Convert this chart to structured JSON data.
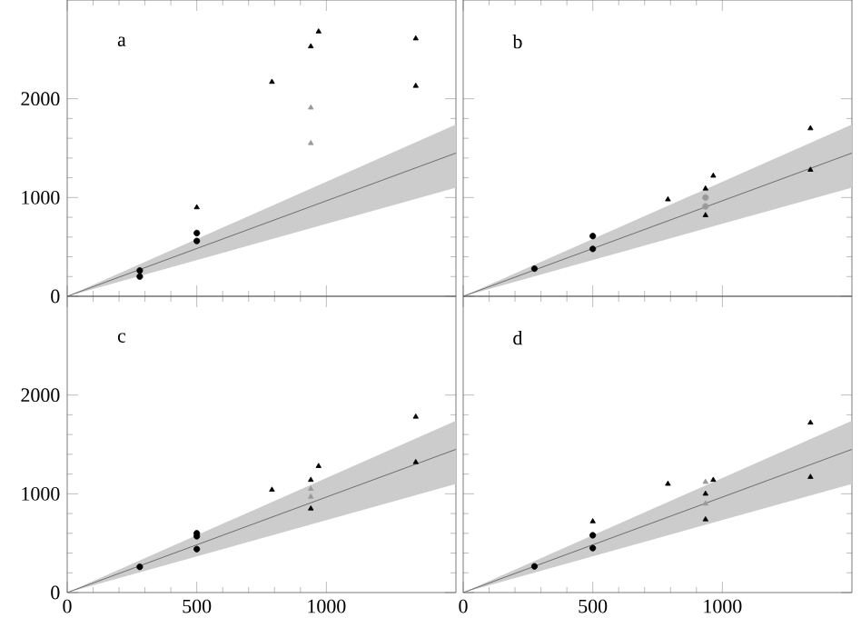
{
  "chart_data": [
    {
      "type": "scatter",
      "annotations": [
        "a"
      ],
      "xlim": [
        0,
        1500
      ],
      "ylim": [
        0,
        3000
      ],
      "xticks": [
        0,
        500,
        1000
      ],
      "yticks": [
        0,
        1000,
        2000
      ],
      "tick_labels": "y",
      "series": [
        {
          "marker": "circle",
          "color": "#000000",
          "x": [
            280,
            280,
            500,
            500
          ],
          "values": [
            260,
            200,
            640,
            560
          ]
        },
        {
          "marker": "triangle",
          "color": "#000000",
          "x": [
            500,
            790,
            940,
            970,
            1345,
            1345
          ],
          "values": [
            900,
            2170,
            2530,
            2680,
            2610,
            2130
          ]
        },
        {
          "marker": "triangle",
          "color": "#999999",
          "x": [
            940,
            940
          ],
          "values": [
            1910,
            1550
          ]
        },
        {
          "type": "line",
          "color": "#555555",
          "x": [
            0,
            1500
          ],
          "values": [
            0,
            1450
          ],
          "lower": [
            0,
            1100
          ],
          "upper": [
            0,
            1740
          ]
        }
      ]
    },
    {
      "type": "scatter",
      "annotations": [
        "b"
      ],
      "xlim": [
        0,
        1500
      ],
      "ylim": [
        0,
        3000
      ],
      "xticks": [
        0,
        500,
        1000
      ],
      "yticks": [
        0,
        1000,
        2000
      ],
      "tick_labels": false,
      "series": [
        {
          "marker": "circle",
          "color": "#000000",
          "x": [
            275,
            500,
            500
          ],
          "values": [
            280,
            610,
            480
          ]
        },
        {
          "marker": "triangle",
          "color": "#000000",
          "x": [
            790,
            935,
            965,
            1340,
            1340,
            935
          ],
          "values": [
            980,
            1090,
            1220,
            1700,
            1280,
            820
          ]
        },
        {
          "marker": "circle",
          "color": "#999999",
          "x": [
            935,
            935
          ],
          "values": [
            1000,
            910
          ]
        },
        {
          "type": "line",
          "color": "#555555",
          "x": [
            0,
            1500
          ],
          "values": [
            0,
            1450
          ],
          "lower": [
            0,
            1100
          ],
          "upper": [
            0,
            1740
          ]
        }
      ]
    },
    {
      "type": "scatter",
      "annotations": [
        "c"
      ],
      "xlim": [
        0,
        1500
      ],
      "ylim": [
        0,
        3000
      ],
      "xticks": [
        0,
        500,
        1000
      ],
      "yticks": [
        0,
        1000,
        2000
      ],
      "series": [
        {
          "marker": "circle",
          "color": "#000000",
          "x": [
            280,
            500,
            500,
            500
          ],
          "values": [
            260,
            600,
            570,
            440
          ]
        },
        {
          "marker": "triangle",
          "color": "#000000",
          "x": [
            790,
            940,
            970,
            1345,
            1345,
            940
          ],
          "values": [
            1040,
            1140,
            1280,
            1780,
            1320,
            850
          ]
        },
        {
          "marker": "triangle",
          "color": "#999999",
          "x": [
            940,
            940
          ],
          "values": [
            1050,
            970
          ]
        },
        {
          "type": "line",
          "color": "#555555",
          "x": [
            0,
            1500
          ],
          "values": [
            0,
            1450
          ],
          "lower": [
            0,
            1100
          ],
          "upper": [
            0,
            1740
          ]
        }
      ]
    },
    {
      "type": "scatter",
      "annotations": [
        "d"
      ],
      "xlim": [
        0,
        1500
      ],
      "ylim": [
        0,
        3000
      ],
      "xticks": [
        0,
        500,
        1000
      ],
      "yticks": [
        0,
        1000,
        2000
      ],
      "tick_labels": "x",
      "series": [
        {
          "marker": "circle",
          "color": "#000000",
          "x": [
            275,
            500,
            500
          ],
          "values": [
            265,
            580,
            450
          ]
        },
        {
          "marker": "triangle",
          "color": "#000000",
          "x": [
            500,
            790,
            965,
            935,
            935,
            1340,
            1340
          ],
          "values": [
            720,
            1100,
            1140,
            1000,
            740,
            1720,
            1170
          ]
        },
        {
          "marker": "triangle",
          "color": "#999999",
          "x": [
            935,
            935
          ],
          "values": [
            1120,
            900
          ]
        },
        {
          "type": "line",
          "color": "#555555",
          "x": [
            0,
            1500
          ],
          "values": [
            0,
            1450
          ],
          "lower": [
            0,
            1100
          ],
          "upper": [
            0,
            1740
          ]
        }
      ]
    }
  ]
}
